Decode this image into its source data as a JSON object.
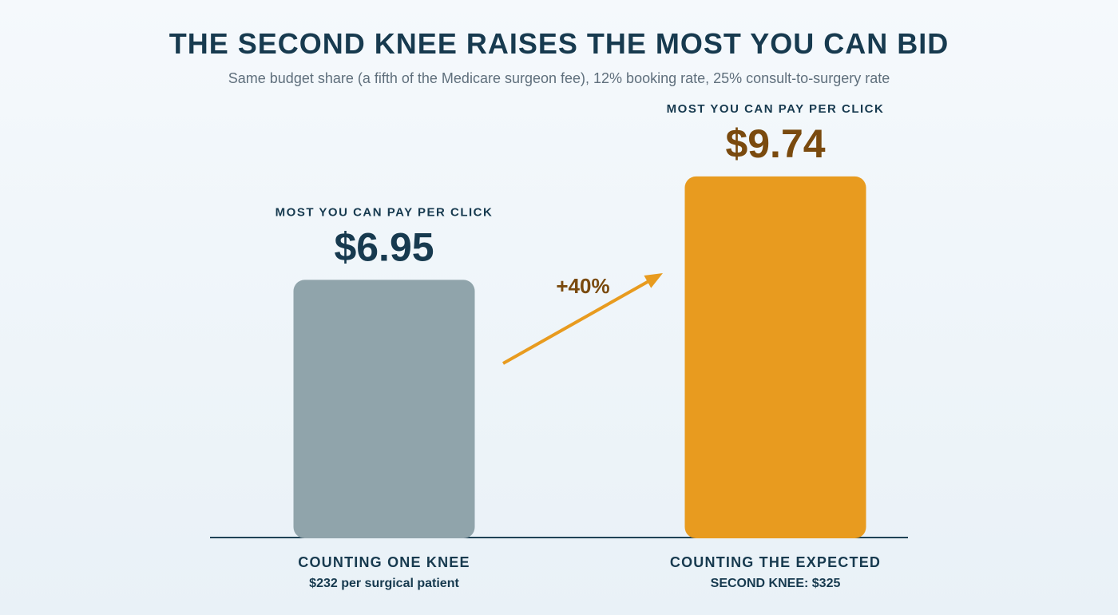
{
  "colors": {
    "bar_one": "#90a4ab",
    "bar_two": "#e89b1f",
    "text_dark": "#173a4f",
    "text_value_two": "#7a4a0e",
    "subtitle": "#5f6f7c",
    "baseline": "#1f4356",
    "arrow": "#e89b1f"
  },
  "chart_data": {
    "type": "bar",
    "title": "THE SECOND KNEE RAISES THE MOST YOU CAN BID",
    "subtitle": "Same budget share (a fifth of the Medicare surgeon fee), 12% booking rate, 25% consult-to-surgery rate",
    "value_unit": "$",
    "ylim": [
      0,
      14.5
    ],
    "grid": false,
    "bars": [
      {
        "category": "COUNTING ONE KNEE",
        "sublabel": "$232 per surgical patient",
        "value": 6.95,
        "value_label": "$6.95",
        "value_caption": "MOST YOU CAN PAY PER CLICK"
      },
      {
        "category": "COUNTING THE EXPECTED",
        "sublabel": "SECOND KNEE: $325",
        "value": 9.74,
        "value_label": "$9.74",
        "value_caption": "MOST YOU CAN PAY PER CLICK"
      }
    ],
    "annotation": {
      "label": "+40%",
      "from": "COUNTING ONE KNEE",
      "to": "COUNTING THE EXPECTED"
    }
  }
}
